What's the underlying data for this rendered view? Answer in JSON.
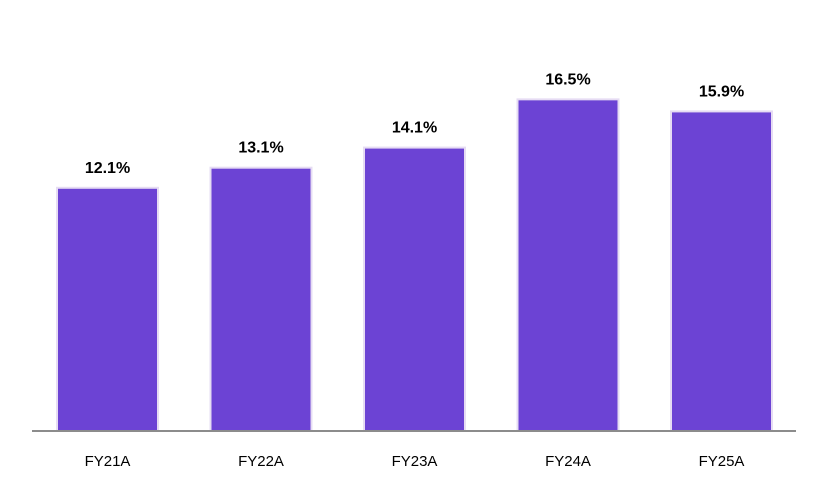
{
  "chart_data": {
    "type": "bar",
    "categories": [
      "FY21A",
      "FY22A",
      "FY23A",
      "FY24A",
      "FY25A"
    ],
    "values": [
      12.1,
      13.1,
      14.1,
      16.5,
      15.9
    ],
    "data_labels": [
      "12.1%",
      "13.1%",
      "14.1%",
      "16.5%",
      "15.9%"
    ],
    "title": "",
    "xlabel": "",
    "ylabel": "",
    "ylim": [
      0,
      20
    ],
    "grid": false,
    "legend": "none",
    "colors": {
      "bar": "#6c43d4",
      "bar_border": "#e6dcf3",
      "axis": "#8c8c8c",
      "text": "#000000"
    }
  }
}
